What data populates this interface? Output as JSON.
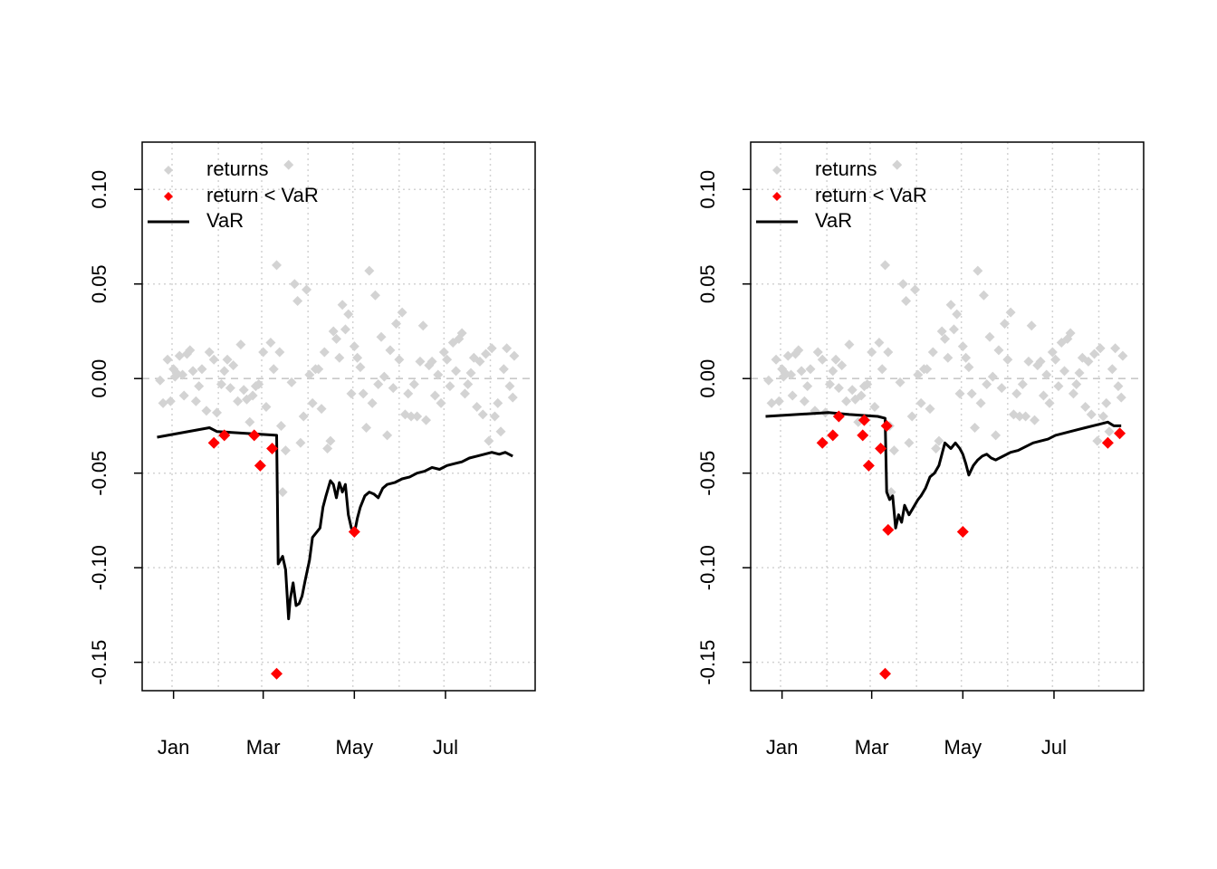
{
  "colors": {
    "returns": "#d3d3d3",
    "exceed": "#ff0000",
    "var": "#000000",
    "grid": "#d3d3d3",
    "zero_line": "#c8c8c8"
  },
  "chart_data": [
    {
      "type": "scatter",
      "xlabel": "",
      "ylabel": "",
      "x_axis": {
        "type": "date",
        "ticks": [
          "2020-01-01",
          "2020-03-01",
          "2020-05-01",
          "2020-07-01"
        ],
        "tick_labels": [
          "Jan",
          "Mar",
          "May",
          "Jul"
        ],
        "range": [
          "2019-12-11",
          "2020-08-30"
        ]
      },
      "y_axis": {
        "ticks": [
          -0.15,
          -0.1,
          -0.05,
          0.0,
          0.05,
          0.1
        ],
        "tick_labels": [
          "-0.15",
          "-0.10",
          "-0.05",
          "0.00",
          "0.05",
          "0.10"
        ],
        "range": [
          -0.165,
          0.125
        ]
      },
      "grid": true,
      "legend": {
        "placement": "top-left",
        "entries": [
          "returns",
          "return < VaR",
          "VaR"
        ]
      },
      "series": [
        {
          "name": "returns",
          "x": [
            "2019-12-23",
            "2019-12-25",
            "2019-12-28",
            "2019-12-30",
            "2020-01-01",
            "2020-01-02",
            "2020-01-03",
            "2020-01-05",
            "2020-01-07",
            "2020-01-08",
            "2020-01-10",
            "2020-01-12",
            "2020-01-14",
            "2020-01-16",
            "2020-01-18",
            "2020-01-20",
            "2020-01-23",
            "2020-01-25",
            "2020-01-28",
            "2020-01-30",
            "2020-02-02",
            "2020-02-04",
            "2020-02-06",
            "2020-02-08",
            "2020-02-10",
            "2020-02-13",
            "2020-02-15",
            "2020-02-17",
            "2020-02-19",
            "2020-02-21",
            "2020-02-23",
            "2020-02-25",
            "2020-02-27",
            "2020-03-01",
            "2020-03-03",
            "2020-03-06",
            "2020-03-08",
            "2020-03-10",
            "2020-03-12",
            "2020-03-13",
            "2020-03-14",
            "2020-03-16",
            "2020-03-18",
            "2020-03-20",
            "2020-03-22",
            "2020-03-24",
            "2020-03-26",
            "2020-03-28",
            "2020-03-30",
            "2020-04-01",
            "2020-04-03",
            "2020-04-05",
            "2020-04-07",
            "2020-04-09",
            "2020-04-11",
            "2020-04-13",
            "2020-04-15",
            "2020-04-17",
            "2020-04-19",
            "2020-04-21",
            "2020-04-23",
            "2020-04-25",
            "2020-04-27",
            "2020-04-29",
            "2020-05-01",
            "2020-05-03",
            "2020-05-05",
            "2020-05-07",
            "2020-05-09",
            "2020-05-11",
            "2020-05-13",
            "2020-05-15",
            "2020-05-17",
            "2020-05-19",
            "2020-05-21",
            "2020-05-23",
            "2020-05-25",
            "2020-05-27",
            "2020-05-29",
            "2020-05-31",
            "2020-06-02",
            "2020-06-04",
            "2020-06-06",
            "2020-06-08",
            "2020-06-10",
            "2020-06-12",
            "2020-06-14",
            "2020-06-16",
            "2020-06-18",
            "2020-06-20",
            "2020-06-22",
            "2020-06-24",
            "2020-06-26",
            "2020-06-28",
            "2020-06-30",
            "2020-07-02",
            "2020-07-04",
            "2020-07-06",
            "2020-07-08",
            "2020-07-10",
            "2020-07-12",
            "2020-07-14",
            "2020-07-16",
            "2020-07-18",
            "2020-07-20",
            "2020-07-22",
            "2020-07-24",
            "2020-07-26",
            "2020-07-28",
            "2020-07-30",
            "2020-08-01",
            "2020-08-03",
            "2020-08-05",
            "2020-08-07",
            "2020-08-09",
            "2020-08-11",
            "2020-08-13",
            "2020-08-15",
            "2020-08-16"
          ],
          "y": [
            -0.001,
            -0.013,
            0.01,
            -0.012,
            0.005,
            0.001,
            0.003,
            0.012,
            0.002,
            -0.009,
            0.013,
            0.015,
            0.004,
            -0.012,
            -0.004,
            0.005,
            -0.017,
            0.014,
            0.01,
            -0.018,
            -0.003,
            0.004,
            0.01,
            -0.005,
            0.007,
            -0.012,
            0.018,
            -0.006,
            -0.011,
            -0.023,
            -0.009,
            -0.004,
            -0.003,
            0.014,
            -0.015,
            0.019,
            0.005,
            0.06,
            0.014,
            -0.025,
            -0.06,
            -0.038,
            0.113,
            -0.002,
            0.05,
            0.041,
            -0.034,
            -0.02,
            0.047,
            0.002,
            -0.013,
            0.005,
            0.005,
            -0.016,
            0.014,
            -0.037,
            -0.033,
            0.025,
            0.021,
            0.011,
            0.039,
            0.026,
            0.034,
            -0.008,
            0.017,
            0.011,
            0.006,
            -0.008,
            -0.026,
            0.057,
            -0.013,
            0.044,
            -0.003,
            0.022,
            0.001,
            -0.03,
            0.015,
            -0.005,
            0.029,
            0.01,
            0.035,
            -0.019,
            -0.008,
            -0.02,
            -0.003,
            -0.02,
            0.009,
            0.028,
            -0.022,
            0.007,
            0.009,
            -0.009,
            0.002,
            -0.013,
            0.014,
            0.01,
            -0.004,
            0.019,
            0.004,
            0.021,
            0.024,
            -0.008,
            -0.003,
            0.003,
            0.011,
            -0.015,
            0.009,
            -0.019,
            0.013,
            -0.033,
            0.016,
            -0.02,
            -0.013,
            -0.028,
            0.005,
            0.016,
            -0.004,
            -0.01,
            0.012
          ]
        },
        {
          "name": "return < VaR",
          "x": [
            "2020-01-28",
            "2020-02-04",
            "2020-02-24",
            "2020-02-28",
            "2020-03-07",
            "2020-03-10",
            "2020-05-01"
          ],
          "y": [
            -0.034,
            -0.03,
            -0.03,
            -0.046,
            -0.037,
            -0.156,
            -0.081
          ]
        },
        {
          "name": "VaR",
          "x": [
            "2019-12-21",
            "2020-01-25",
            "2020-01-30",
            "2020-03-10",
            "2020-03-11",
            "2020-03-14",
            "2020-03-16",
            "2020-03-18",
            "2020-03-19",
            "2020-03-21",
            "2020-03-23",
            "2020-03-25",
            "2020-03-27",
            "2020-03-29",
            "2020-04-01",
            "2020-04-03",
            "2020-04-05",
            "2020-04-08",
            "2020-04-10",
            "2020-04-12",
            "2020-04-15",
            "2020-04-17",
            "2020-04-19",
            "2020-04-21",
            "2020-04-23",
            "2020-04-25",
            "2020-04-27",
            "2020-04-29",
            "2020-05-01",
            "2020-05-03",
            "2020-05-05",
            "2020-05-08",
            "2020-05-11",
            "2020-05-14",
            "2020-05-17",
            "2020-05-20",
            "2020-05-23",
            "2020-05-28",
            "2020-06-02",
            "2020-06-07",
            "2020-06-12",
            "2020-06-17",
            "2020-06-22",
            "2020-06-27",
            "2020-07-02",
            "2020-07-07",
            "2020-07-12",
            "2020-07-17",
            "2020-07-22",
            "2020-07-27",
            "2020-08-01",
            "2020-08-06",
            "2020-08-10",
            "2020-08-15"
          ],
          "y": [
            -0.031,
            -0.026,
            -0.028,
            -0.03,
            -0.098,
            -0.094,
            -0.101,
            -0.127,
            -0.117,
            -0.108,
            -0.12,
            -0.119,
            -0.115,
            -0.107,
            -0.096,
            -0.084,
            -0.082,
            -0.079,
            -0.068,
            -0.062,
            -0.054,
            -0.056,
            -0.063,
            -0.055,
            -0.06,
            -0.056,
            -0.072,
            -0.079,
            -0.082,
            -0.074,
            -0.068,
            -0.062,
            -0.06,
            -0.061,
            -0.063,
            -0.058,
            -0.056,
            -0.055,
            -0.053,
            -0.052,
            -0.05,
            -0.049,
            -0.047,
            -0.048,
            -0.046,
            -0.045,
            -0.044,
            -0.042,
            -0.041,
            -0.04,
            -0.039,
            -0.04,
            -0.039,
            -0.041
          ]
        }
      ]
    },
    {
      "type": "scatter",
      "xlabel": "",
      "ylabel": "",
      "x_axis": {
        "type": "date",
        "ticks": [
          "2020-01-01",
          "2020-03-01",
          "2020-05-01",
          "2020-07-01"
        ],
        "tick_labels": [
          "Jan",
          "Mar",
          "May",
          "Jul"
        ],
        "range": [
          "2019-12-11",
          "2020-08-30"
        ]
      },
      "y_axis": {
        "ticks": [
          -0.15,
          -0.1,
          -0.05,
          0.0,
          0.05,
          0.1
        ],
        "tick_labels": [
          "-0.15",
          "-0.10",
          "-0.05",
          "0.00",
          "0.05",
          "0.10"
        ],
        "range": [
          -0.165,
          0.125
        ]
      },
      "grid": true,
      "legend": {
        "placement": "top-left",
        "entries": [
          "returns",
          "return < VaR",
          "VaR"
        ]
      },
      "series": [
        {
          "name": "returns",
          "x": [
            "2019-12-23",
            "2019-12-25",
            "2019-12-28",
            "2019-12-30",
            "2020-01-01",
            "2020-01-02",
            "2020-01-03",
            "2020-01-05",
            "2020-01-07",
            "2020-01-08",
            "2020-01-10",
            "2020-01-12",
            "2020-01-14",
            "2020-01-16",
            "2020-01-18",
            "2020-01-20",
            "2020-01-23",
            "2020-01-25",
            "2020-01-28",
            "2020-01-30",
            "2020-02-02",
            "2020-02-04",
            "2020-02-06",
            "2020-02-08",
            "2020-02-10",
            "2020-02-13",
            "2020-02-15",
            "2020-02-17",
            "2020-02-19",
            "2020-02-21",
            "2020-02-23",
            "2020-02-25",
            "2020-02-27",
            "2020-03-01",
            "2020-03-03",
            "2020-03-06",
            "2020-03-08",
            "2020-03-10",
            "2020-03-12",
            "2020-03-13",
            "2020-03-14",
            "2020-03-16",
            "2020-03-18",
            "2020-03-20",
            "2020-03-22",
            "2020-03-24",
            "2020-03-26",
            "2020-03-28",
            "2020-03-30",
            "2020-04-01",
            "2020-04-03",
            "2020-04-05",
            "2020-04-07",
            "2020-04-09",
            "2020-04-11",
            "2020-04-13",
            "2020-04-15",
            "2020-04-17",
            "2020-04-19",
            "2020-04-21",
            "2020-04-23",
            "2020-04-25",
            "2020-04-27",
            "2020-04-29",
            "2020-05-01",
            "2020-05-03",
            "2020-05-05",
            "2020-05-07",
            "2020-05-09",
            "2020-05-11",
            "2020-05-13",
            "2020-05-15",
            "2020-05-17",
            "2020-05-19",
            "2020-05-21",
            "2020-05-23",
            "2020-05-25",
            "2020-05-27",
            "2020-05-29",
            "2020-05-31",
            "2020-06-02",
            "2020-06-04",
            "2020-06-06",
            "2020-06-08",
            "2020-06-10",
            "2020-06-12",
            "2020-06-14",
            "2020-06-16",
            "2020-06-18",
            "2020-06-20",
            "2020-06-22",
            "2020-06-24",
            "2020-06-26",
            "2020-06-28",
            "2020-06-30",
            "2020-07-02",
            "2020-07-04",
            "2020-07-06",
            "2020-07-08",
            "2020-07-10",
            "2020-07-12",
            "2020-07-14",
            "2020-07-16",
            "2020-07-18",
            "2020-07-20",
            "2020-07-22",
            "2020-07-24",
            "2020-07-26",
            "2020-07-28",
            "2020-07-30",
            "2020-08-01",
            "2020-08-03",
            "2020-08-05",
            "2020-08-07",
            "2020-08-09",
            "2020-08-11",
            "2020-08-13",
            "2020-08-15",
            "2020-08-16"
          ],
          "y": [
            -0.001,
            -0.013,
            0.01,
            -0.012,
            0.005,
            0.001,
            0.003,
            0.012,
            0.002,
            -0.009,
            0.013,
            0.015,
            0.004,
            -0.012,
            -0.004,
            0.005,
            -0.017,
            0.014,
            0.01,
            -0.018,
            -0.003,
            0.004,
            0.01,
            -0.005,
            0.007,
            -0.012,
            0.018,
            -0.006,
            -0.011,
            -0.023,
            -0.009,
            -0.004,
            -0.003,
            0.014,
            -0.015,
            0.019,
            0.005,
            0.06,
            0.014,
            -0.025,
            -0.06,
            -0.038,
            0.113,
            -0.002,
            0.05,
            0.041,
            -0.034,
            -0.02,
            0.047,
            0.002,
            -0.013,
            0.005,
            0.005,
            -0.016,
            0.014,
            -0.037,
            -0.033,
            0.025,
            0.021,
            0.011,
            0.039,
            0.026,
            0.034,
            -0.008,
            0.017,
            0.011,
            0.006,
            -0.008,
            -0.026,
            0.057,
            -0.013,
            0.044,
            -0.003,
            0.022,
            0.001,
            -0.03,
            0.015,
            -0.005,
            0.029,
            0.01,
            0.035,
            -0.019,
            -0.008,
            -0.02,
            -0.003,
            -0.02,
            0.009,
            0.028,
            -0.022,
            0.007,
            0.009,
            -0.009,
            0.002,
            -0.013,
            0.014,
            0.01,
            -0.004,
            0.019,
            0.004,
            0.021,
            0.024,
            -0.008,
            -0.003,
            0.003,
            0.011,
            -0.015,
            0.009,
            -0.019,
            0.013,
            -0.033,
            0.016,
            -0.02,
            -0.013,
            -0.028,
            0.005,
            0.016,
            -0.004,
            -0.01,
            0.012
          ]
        },
        {
          "name": "return < VaR",
          "x": [
            "2020-01-28",
            "2020-02-04",
            "2020-02-08",
            "2020-02-24",
            "2020-02-25",
            "2020-02-28",
            "2020-03-07",
            "2020-03-10",
            "2020-03-11",
            "2020-03-12",
            "2020-05-01",
            "2020-08-06",
            "2020-08-14"
          ],
          "y": [
            -0.034,
            -0.03,
            -0.02,
            -0.03,
            -0.022,
            -0.046,
            -0.037,
            -0.156,
            -0.025,
            -0.08,
            -0.081,
            -0.034,
            -0.029
          ]
        },
        {
          "name": "VaR",
          "x": [
            "2019-12-21",
            "2020-02-01",
            "2020-02-15",
            "2020-03-05",
            "2020-03-10",
            "2020-03-11",
            "2020-03-13",
            "2020-03-15",
            "2020-03-17",
            "2020-03-19",
            "2020-03-21",
            "2020-03-23",
            "2020-03-26",
            "2020-03-29",
            "2020-04-01",
            "2020-04-03",
            "2020-04-06",
            "2020-04-09",
            "2020-04-12",
            "2020-04-15",
            "2020-04-19",
            "2020-04-23",
            "2020-04-26",
            "2020-04-29",
            "2020-05-01",
            "2020-05-03",
            "2020-05-05",
            "2020-05-08",
            "2020-05-11",
            "2020-05-14",
            "2020-05-17",
            "2020-05-20",
            "2020-05-23",
            "2020-05-28",
            "2020-06-02",
            "2020-06-07",
            "2020-06-12",
            "2020-06-17",
            "2020-06-22",
            "2020-06-27",
            "2020-07-02",
            "2020-07-07",
            "2020-07-12",
            "2020-07-17",
            "2020-07-22",
            "2020-07-27",
            "2020-08-01",
            "2020-08-06",
            "2020-08-10",
            "2020-08-15"
          ],
          "y": [
            -0.02,
            -0.018,
            -0.019,
            -0.02,
            -0.021,
            -0.06,
            -0.064,
            -0.062,
            -0.079,
            -0.072,
            -0.076,
            -0.067,
            -0.072,
            -0.068,
            -0.064,
            -0.062,
            -0.058,
            -0.052,
            -0.05,
            -0.046,
            -0.034,
            -0.037,
            -0.034,
            -0.037,
            -0.04,
            -0.045,
            -0.051,
            -0.046,
            -0.043,
            -0.041,
            -0.04,
            -0.042,
            -0.043,
            -0.041,
            -0.039,
            -0.038,
            -0.036,
            -0.034,
            -0.033,
            -0.032,
            -0.03,
            -0.029,
            -0.028,
            -0.027,
            -0.026,
            -0.025,
            -0.024,
            -0.023,
            -0.025,
            -0.025
          ]
        }
      ]
    }
  ]
}
